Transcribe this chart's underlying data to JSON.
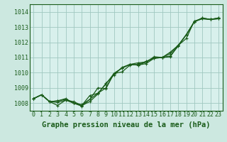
{
  "title": "Graphe pression niveau de la mer (hPa)",
  "background_color": "#cce8e0",
  "plot_bg_color": "#d8f0ec",
  "grid_color": "#a0c8c0",
  "line_color": "#1a5c1a",
  "xlim": [
    -0.5,
    23.5
  ],
  "ylim": [
    1007.5,
    1014.5
  ],
  "yticks": [
    1008,
    1009,
    1010,
    1011,
    1012,
    1013,
    1014
  ],
  "xticks": [
    0,
    1,
    2,
    3,
    4,
    5,
    6,
    7,
    8,
    9,
    10,
    11,
    12,
    13,
    14,
    15,
    16,
    17,
    18,
    19,
    20,
    21,
    22,
    23
  ],
  "series": [
    [
      1008.3,
      1008.55,
      1008.1,
      1007.85,
      1008.2,
      1008.0,
      1007.8,
      1008.25,
      1008.65,
      1009.0,
      1009.95,
      1010.05,
      1010.5,
      1010.55,
      1010.75,
      1010.95,
      1011.0,
      1011.05,
      1011.8,
      1012.25,
      1013.4,
      1013.55,
      1013.5,
      1013.55
    ],
    [
      1008.3,
      1008.55,
      1008.1,
      1008.05,
      1008.2,
      1008.1,
      1007.85,
      1008.5,
      1008.65,
      1009.25,
      1009.95,
      1010.3,
      1010.55,
      1010.65,
      1010.7,
      1011.05,
      1011.0,
      1011.1,
      1011.75,
      1012.5,
      1013.35,
      1013.55,
      1013.5,
      1013.55
    ],
    [
      1008.3,
      1008.55,
      1008.1,
      1008.15,
      1008.3,
      1008.0,
      1007.9,
      1008.25,
      1009.0,
      1008.95,
      1009.95,
      1010.3,
      1010.55,
      1010.5,
      1010.6,
      1010.95,
      1011.0,
      1011.35,
      1011.8,
      1012.5,
      1013.35,
      1013.6,
      1013.5,
      1013.6
    ],
    [
      1008.3,
      1008.55,
      1008.1,
      1008.15,
      1008.25,
      1008.0,
      1007.85,
      1008.1,
      1008.6,
      1009.3,
      1009.85,
      1010.35,
      1010.55,
      1010.5,
      1010.7,
      1011.0,
      1011.0,
      1011.25,
      1011.8,
      1012.5,
      1013.35,
      1013.6,
      1013.5,
      1013.6
    ]
  ],
  "marker": "+",
  "markersize": 3.5,
  "linewidth": 0.9,
  "xlabel_fontsize": 7.5,
  "tick_fontsize": 6
}
